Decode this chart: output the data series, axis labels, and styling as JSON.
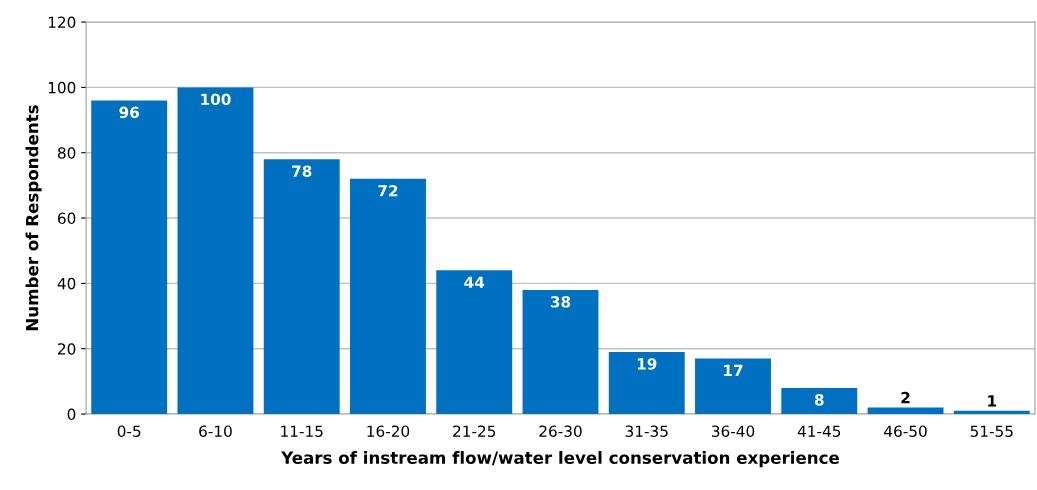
{
  "chart_data": {
    "type": "bar",
    "xlabel": "Years of instream flow/water level conservation experience",
    "ylabel": "Number of Respondents",
    "categories": [
      "0-5",
      "6-10",
      "11-15",
      "16-20",
      "21-25",
      "26-30",
      "31-35",
      "36-40",
      "41-45",
      "46-50",
      "51-55"
    ],
    "values": [
      96,
      100,
      78,
      72,
      44,
      38,
      19,
      17,
      8,
      2,
      1
    ],
    "color": "#0070c0",
    "ylim": [
      0,
      120
    ],
    "yticks": [
      0,
      20,
      40,
      60,
      80,
      100,
      120
    ],
    "grid": "y",
    "data_labels": true
  }
}
